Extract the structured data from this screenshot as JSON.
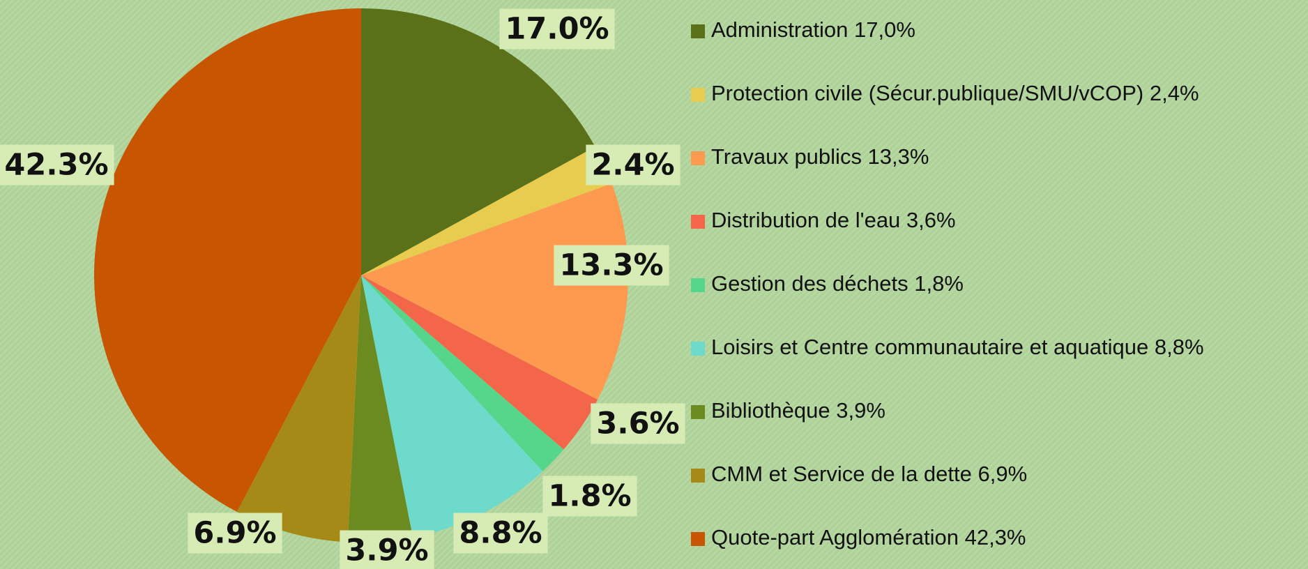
{
  "chart_data": {
    "type": "pie",
    "categories": [
      "Administration 17,0%",
      "Protection civile (Sécur.publique/SMU/vCOP) 2,4%",
      "Travaux publics 13,3%",
      "Distribution de l'eau 3,6%",
      "Gestion des déchets 1,8%",
      "Loisirs et Centre communautaire et aquatique 8,8%",
      "Bibliothèque 3,9%",
      "CMM et Service de la dette 6,9%",
      "Quote-part Agglomération 42,3%"
    ],
    "values": [
      17.0,
      2.4,
      13.3,
      3.6,
      1.8,
      8.8,
      3.9,
      6.9,
      42.3
    ],
    "value_labels": [
      "17.0%",
      "2.4%",
      "13.3%",
      "3.6%",
      "1.8%",
      "8.8%",
      "3.9%",
      "6.9%",
      "42.3%"
    ],
    "colors": [
      "#5a7019",
      "#e8cc50",
      "#fd9a50",
      "#f4664a",
      "#55d68a",
      "#6ddacb",
      "#6b8a20",
      "#a68a18",
      "#c85500"
    ],
    "legend": "right"
  }
}
